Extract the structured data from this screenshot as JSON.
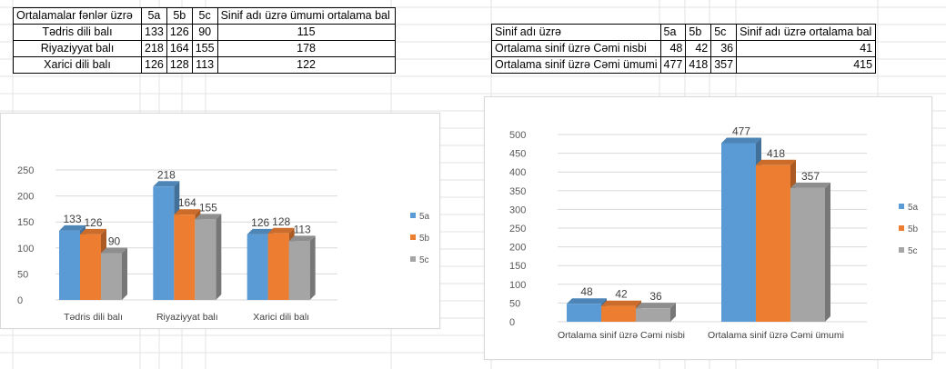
{
  "table1": {
    "header": [
      "Ortalamalar fənlər üzrə",
      "5a",
      "5b",
      "5c",
      "Sinif adı üzrə ümumi ortalama bal"
    ],
    "rows": [
      {
        "label": "Tədris dili balı",
        "a": "133",
        "b": "126",
        "c": "90",
        "avg": "115"
      },
      {
        "label": "Riyaziyyat balı",
        "a": "218",
        "b": "164",
        "c": "155",
        "avg": "178"
      },
      {
        "label": "Xarici dili balı",
        "a": "126",
        "b": "128",
        "c": "113",
        "avg": "122"
      }
    ]
  },
  "table2": {
    "header": [
      "Sinif adı üzrə",
      "5a",
      "5b",
      "5c",
      "Sinif adı üzrə ortalama bal"
    ],
    "rows": [
      {
        "label": "Ortalama sinif üzrə Cəmi nisbi",
        "a": "48",
        "b": "42",
        "c": "36",
        "avg": "41"
      },
      {
        "label": "Ortalama sinif üzrə Cəmi ümumi",
        "a": "477",
        "b": "418",
        "c": "357",
        "avg": "415"
      }
    ]
  },
  "colors": {
    "5a": "#5b9bd5",
    "5b": "#ed7d31",
    "5c": "#a5a5a5"
  },
  "chart_data": [
    {
      "type": "bar",
      "categories": [
        "Tədris dili balı",
        "Riyaziyyat balı",
        "Xarici dili balı"
      ],
      "series": [
        {
          "name": "5a",
          "values": [
            133,
            218,
            126
          ]
        },
        {
          "name": "5b",
          "values": [
            126,
            164,
            128
          ]
        },
        {
          "name": "5c",
          "values": [
            90,
            155,
            113
          ]
        }
      ],
      "yticks": [
        "0",
        "50",
        "100",
        "150",
        "200",
        "250"
      ],
      "ylim": [
        0,
        250
      ],
      "grid": true,
      "legend": "right",
      "style": "3d-clustered-column"
    },
    {
      "type": "bar",
      "categories": [
        "Ortalama sinif üzrə Cəmi nisbi",
        "Ortalama sinif üzrə Cəmi ümumi"
      ],
      "series": [
        {
          "name": "5a",
          "values": [
            48,
            477
          ]
        },
        {
          "name": "5b",
          "values": [
            42,
            418
          ]
        },
        {
          "name": "5c",
          "values": [
            36,
            357
          ]
        }
      ],
      "yticks": [
        "0",
        "50",
        "100",
        "150",
        "200",
        "250",
        "300",
        "350",
        "400",
        "450",
        "500"
      ],
      "ylim": [
        0,
        500
      ],
      "grid": true,
      "legend": "right",
      "style": "3d-clustered-column"
    }
  ]
}
